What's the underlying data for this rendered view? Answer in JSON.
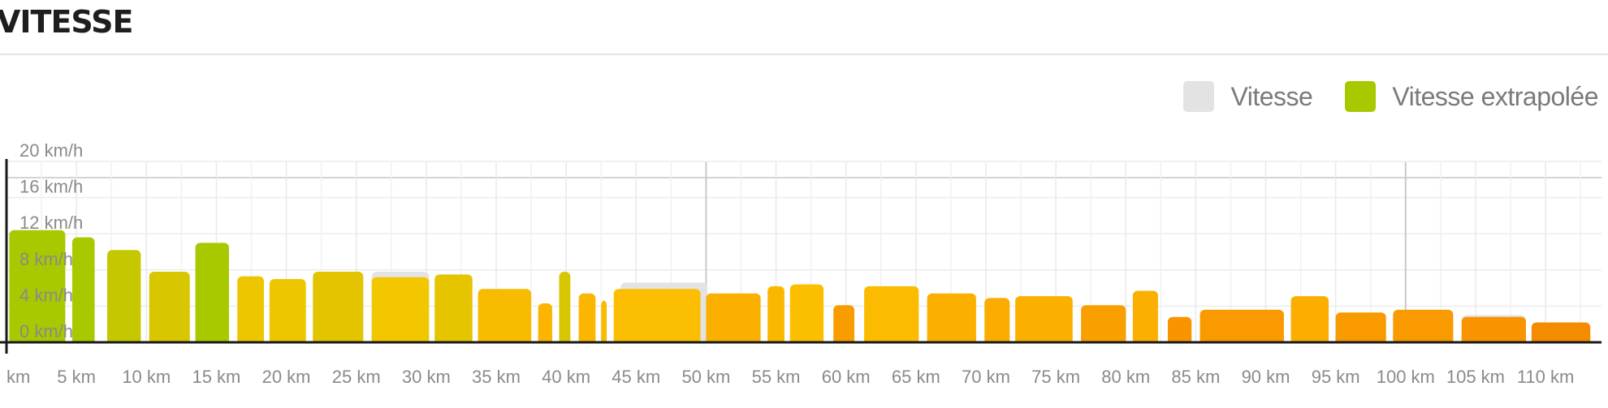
{
  "title": "VITESSE",
  "legend": {
    "items": [
      {
        "label": "Vitesse",
        "color": "#e3e3e3"
      },
      {
        "label": "Vitesse extrapolée",
        "color": "#a8c800"
      }
    ]
  },
  "chart_data": {
    "type": "bar",
    "title": "VITESSE",
    "xlabel": "",
    "ylabel": "",
    "xlim": [
      0,
      114
    ],
    "ylim": [
      0,
      20
    ],
    "x_ticks": [
      "km",
      "5 km",
      "10 km",
      "15 km",
      "20 km",
      "25 km",
      "30 km",
      "35 km",
      "40 km",
      "45 km",
      "50 km",
      "55 km",
      "60 km",
      "65 km",
      "70 km",
      "75 km",
      "80 km",
      "85 km",
      "90 km",
      "95 km",
      "100 km",
      "105 km",
      "110 km"
    ],
    "y_ticks": [
      "0 km/h",
      "4 km/h",
      "8 km/h",
      "12 km/h",
      "16 km/h",
      "20 km/h"
    ],
    "grid": true,
    "legend_position": "top-right",
    "series": [
      {
        "name": "Vitesse",
        "color": "#e3e3e3",
        "segments": [
          {
            "start": 0.2,
            "end": 4.2,
            "value": 12.4
          },
          {
            "start": 26.1,
            "end": 30.2,
            "value": 7.8
          },
          {
            "start": 43.9,
            "end": 50.1,
            "value": 6.6
          },
          {
            "start": 104.0,
            "end": 108.6,
            "value": 3.0
          }
        ]
      },
      {
        "name": "Vitesse extrapolée",
        "segments": [
          {
            "start": 0.2,
            "end": 4.2,
            "value": 12.4,
            "color": "#a8c800"
          },
          {
            "start": 4.7,
            "end": 6.3,
            "value": 11.6,
            "color": "#a8c800"
          },
          {
            "start": 7.2,
            "end": 9.6,
            "value": 10.2,
            "color": "#c5c800"
          },
          {
            "start": 10.2,
            "end": 13.1,
            "value": 7.8,
            "color": "#d8c600"
          },
          {
            "start": 13.5,
            "end": 15.9,
            "value": 11.0,
            "color": "#a8c800"
          },
          {
            "start": 16.5,
            "end": 18.4,
            "value": 7.3,
            "color": "#eec600"
          },
          {
            "start": 18.8,
            "end": 21.4,
            "value": 7.0,
            "color": "#eec600"
          },
          {
            "start": 21.9,
            "end": 25.5,
            "value": 7.8,
            "color": "#e2c400"
          },
          {
            "start": 26.1,
            "end": 30.2,
            "value": 7.2,
            "color": "#f3c700"
          },
          {
            "start": 30.6,
            "end": 33.3,
            "value": 7.5,
            "color": "#e5c400"
          },
          {
            "start": 33.7,
            "end": 37.5,
            "value": 5.9,
            "color": "#f8bb00"
          },
          {
            "start": 38.0,
            "end": 39.0,
            "value": 4.3,
            "color": "#fbb400"
          },
          {
            "start": 39.5,
            "end": 40.3,
            "value": 7.8,
            "color": "#d8c600"
          },
          {
            "start": 40.9,
            "end": 42.1,
            "value": 5.4,
            "color": "#fbb600"
          },
          {
            "start": 42.5,
            "end": 42.9,
            "value": 4.6,
            "color": "#f8bb00"
          },
          {
            "start": 43.4,
            "end": 49.6,
            "value": 5.9,
            "color": "#fcbe00"
          },
          {
            "start": 50.0,
            "end": 53.9,
            "value": 5.4,
            "color": "#fbb000"
          },
          {
            "start": 54.4,
            "end": 55.6,
            "value": 6.2,
            "color": "#fbb600"
          },
          {
            "start": 56.0,
            "end": 58.4,
            "value": 6.4,
            "color": "#fbbf00"
          },
          {
            "start": 59.1,
            "end": 60.6,
            "value": 4.1,
            "color": "#f99c00"
          },
          {
            "start": 61.3,
            "end": 65.2,
            "value": 6.2,
            "color": "#fbbb00"
          },
          {
            "start": 65.8,
            "end": 69.3,
            "value": 5.4,
            "color": "#fbb000"
          },
          {
            "start": 69.9,
            "end": 71.7,
            "value": 4.9,
            "color": "#fbac00"
          },
          {
            "start": 72.1,
            "end": 76.2,
            "value": 5.1,
            "color": "#fbb000"
          },
          {
            "start": 76.8,
            "end": 80.0,
            "value": 4.1,
            "color": "#fa9f00"
          },
          {
            "start": 80.5,
            "end": 82.3,
            "value": 5.7,
            "color": "#fbaf00"
          },
          {
            "start": 83.0,
            "end": 84.7,
            "value": 2.8,
            "color": "#f99400"
          },
          {
            "start": 85.3,
            "end": 91.3,
            "value": 3.6,
            "color": "#f99a00"
          },
          {
            "start": 91.8,
            "end": 94.5,
            "value": 5.1,
            "color": "#fbae00"
          },
          {
            "start": 95.0,
            "end": 98.6,
            "value": 3.3,
            "color": "#f99a00"
          },
          {
            "start": 99.1,
            "end": 103.4,
            "value": 3.6,
            "color": "#f99a00"
          },
          {
            "start": 104.0,
            "end": 108.6,
            "value": 2.8,
            "color": "#f99400"
          },
          {
            "start": 109.0,
            "end": 113.2,
            "value": 2.2,
            "color": "#f58c00"
          }
        ]
      }
    ]
  }
}
